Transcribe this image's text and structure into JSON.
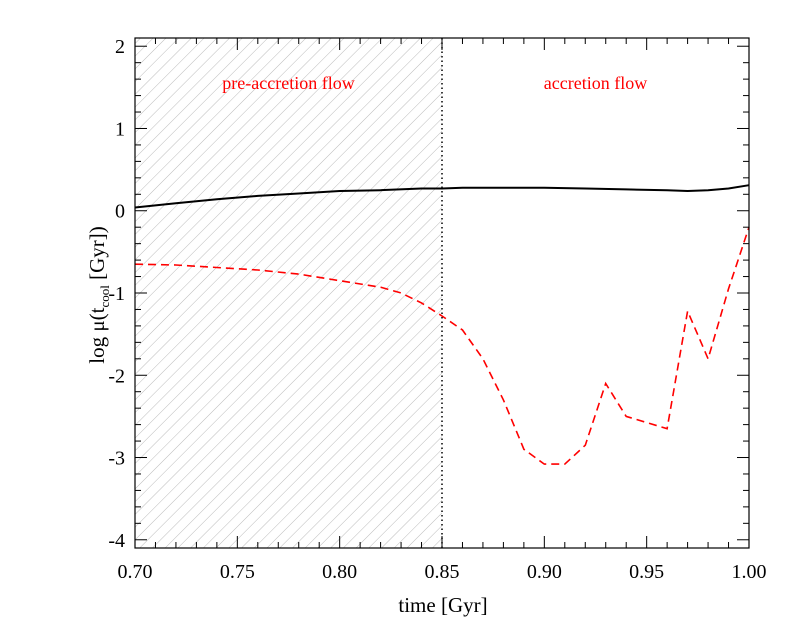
{
  "chart_data": {
    "type": "line",
    "xlabel": "time [Gyr]",
    "ylabel": {
      "prefix": "log μ(t",
      "subscript": "cool",
      "suffix": " [Gyr])"
    },
    "xlim": [
      0.7,
      1.0
    ],
    "ylim": [
      -4.1,
      2.1
    ],
    "xticks": [
      0.7,
      0.75,
      0.8,
      0.85,
      0.9,
      0.95,
      1.0
    ],
    "xtick_labels": [
      "0.70",
      "0.75",
      "0.80",
      "0.85",
      "0.90",
      "0.95",
      "1.00"
    ],
    "yticks": [
      -4,
      -3,
      -2,
      -1,
      0,
      1,
      2
    ],
    "ytick_labels": [
      "-4",
      "-3",
      "-2",
      "-1",
      "0",
      "1",
      "2"
    ],
    "shaded_region": {
      "x0": 0.7,
      "x1": 0.85,
      "label": "pre-accretion flow",
      "pattern": "diagonal hatch"
    },
    "divider": {
      "x": 0.85,
      "style": "dotted"
    },
    "region_labels": [
      {
        "text": "pre-accretion flow",
        "x": 0.775,
        "y": 1.55,
        "color": "#ff0000"
      },
      {
        "text": "accretion flow",
        "x": 0.925,
        "y": 1.55,
        "color": "#ff0000"
      }
    ],
    "grid": false,
    "series": [
      {
        "style": "solid",
        "color": "#000000",
        "x": [
          0.7,
          0.72,
          0.74,
          0.76,
          0.78,
          0.8,
          0.82,
          0.84,
          0.85,
          0.86,
          0.88,
          0.9,
          0.92,
          0.94,
          0.96,
          0.97,
          0.98,
          0.99,
          1.0
        ],
        "y": [
          0.04,
          0.09,
          0.14,
          0.18,
          0.21,
          0.24,
          0.25,
          0.27,
          0.27,
          0.28,
          0.28,
          0.28,
          0.27,
          0.26,
          0.25,
          0.24,
          0.25,
          0.27,
          0.31
        ]
      },
      {
        "style": "dashed",
        "color": "#ff0000",
        "x": [
          0.7,
          0.72,
          0.74,
          0.76,
          0.78,
          0.8,
          0.82,
          0.83,
          0.84,
          0.85,
          0.86,
          0.87,
          0.88,
          0.89,
          0.9,
          0.91,
          0.92,
          0.93,
          0.94,
          0.96,
          0.97,
          0.98,
          0.99,
          1.0
        ],
        "y": [
          -0.65,
          -0.66,
          -0.69,
          -0.72,
          -0.77,
          -0.85,
          -0.93,
          -1.0,
          -1.12,
          -1.28,
          -1.45,
          -1.8,
          -2.3,
          -2.9,
          -3.08,
          -3.08,
          -2.85,
          -2.1,
          -2.5,
          -2.65,
          -1.22,
          -1.8,
          -0.95,
          -0.2
        ]
      }
    ]
  }
}
